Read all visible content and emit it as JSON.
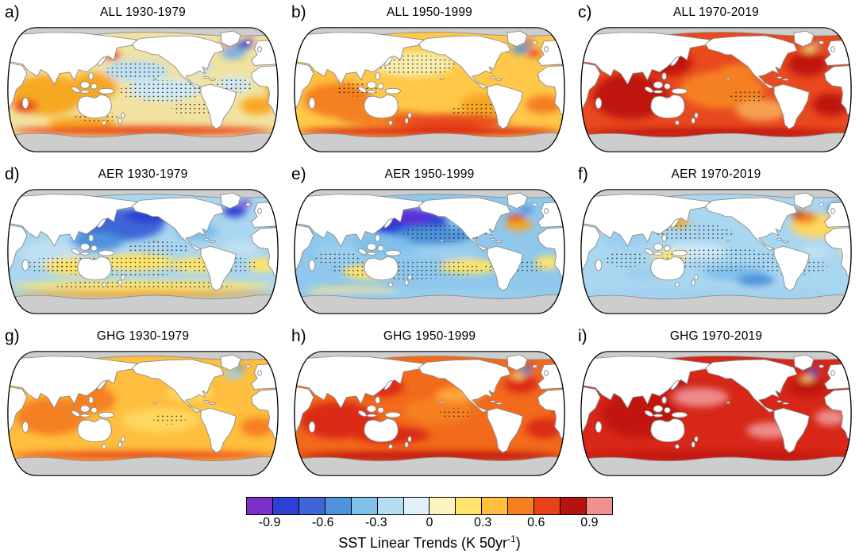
{
  "chart_data": {
    "type": "heatmap",
    "layout": "3x3 grid of global Robinson-projection maps, columns = forcing experiment (ALL, AER, GHG), rows = trend period",
    "variable": "SST Linear Trends",
    "units": "K 50yr-1",
    "stippling_note": "black stippled dots mark regions on several panels",
    "colorbar": {
      "orientation": "horizontal",
      "tick_labels": [
        "-0.9",
        "-0.6",
        "-0.3",
        "0",
        "0.3",
        "0.6",
        "0.9"
      ],
      "segment_step": 0.15,
      "value_min": -1.05,
      "value_max": 1.05,
      "segment_colors": [
        "#7A2FC6",
        "#2F3FD3",
        "#3E66D6",
        "#4E93DC",
        "#7EC0EA",
        "#B5DDF2",
        "#E0F1FA",
        "#FBF3C0",
        "#FFE36B",
        "#FFBE3D",
        "#F58020",
        "#E8421C",
        "#B5140E",
        "#F09090"
      ]
    },
    "panels": [
      {
        "letter": "a)",
        "forcing": "ALL",
        "period": "1930-1979",
        "title": "ALL 1930-1979",
        "pattern": "patchy weak warming; cooling in central North Pacific and subpolar North Atlantic"
      },
      {
        "letter": "b)",
        "forcing": "ALL",
        "period": "1950-1999",
        "title": "ALL 1950-1999",
        "pattern": "moderate warming, strongest in Southern Hemisphere; weak/neutral North Pacific; cool spot subpolar North Atlantic"
      },
      {
        "letter": "c)",
        "forcing": "ALL",
        "period": "1970-2019",
        "title": "ALL 1970-2019",
        "pattern": "strong warming nearly everywhere, strongest in Indian Ocean and Atlantic"
      },
      {
        "letter": "d)",
        "forcing": "AER",
        "period": "1930-1979",
        "title": "AER 1930-1979",
        "pattern": "strong cooling in North Pacific and North Atlantic; weak warm band in southern subtropics"
      },
      {
        "letter": "e)",
        "forcing": "AER",
        "period": "1950-1999",
        "title": "AER 1950-1999",
        "pattern": "widespread cooling, strongest in North Pacific; warm spot in northwest Atlantic"
      },
      {
        "letter": "f)",
        "forcing": "AER",
        "period": "1970-2019",
        "title": "AER 1970-2019",
        "pattern": "weak cooling over much of the Pacific; warming in the North Atlantic"
      },
      {
        "letter": "g)",
        "forcing": "GHG",
        "period": "1930-1979",
        "title": "GHG 1930-1979",
        "pattern": "moderate uniform warming; small cool spot in subpolar North Atlantic"
      },
      {
        "letter": "h)",
        "forcing": "GHG",
        "period": "1950-1999",
        "title": "GHG 1950-1999",
        "pattern": "strong warming everywhere; small cool spot in subpolar North Atlantic"
      },
      {
        "letter": "i)",
        "forcing": "GHG",
        "period": "1970-2019",
        "title": "GHG 1970-2019",
        "pattern": "very strong warming everywhere; small cool spot in subpolar North Atlantic"
      }
    ]
  },
  "colorbar": {
    "colors": [
      "#7A2FC6",
      "#2F3FD3",
      "#3E66D6",
      "#4E93DC",
      "#7EC0EA",
      "#B5DDF2",
      "#E0F1FA",
      "#FBF3C0",
      "#FFE36B",
      "#FFBE3D",
      "#F58020",
      "#E8421C",
      "#B5140E",
      "#F09090"
    ],
    "ticks": [
      "-0.9",
      "-0.6",
      "-0.3",
      "0",
      "0.3",
      "0.6",
      "0.9"
    ],
    "label_prefix": "SST Linear Trends (K 50yr",
    "label_sup": "-1",
    "label_suffix": ")"
  },
  "panels": [
    {
      "letter": "a)",
      "title": "ALL 1930-1979",
      "ocean": "#F2E2A0",
      "blobs": [
        [
          55,
          108,
          48,
          30,
          "#F7A823"
        ],
        [
          26,
          124,
          16,
          10,
          "#E8491F"
        ],
        [
          116,
          96,
          30,
          22,
          "#F7A823"
        ],
        [
          140,
          50,
          10,
          6,
          "#DC2B18"
        ],
        [
          292,
          30,
          8,
          5,
          "#DC2B18"
        ],
        [
          80,
          70,
          25,
          12,
          "#FFD75E"
        ],
        [
          172,
          72,
          42,
          16,
          "#BFE0F2"
        ],
        [
          208,
          100,
          48,
          16,
          "#CFE9F6"
        ],
        [
          252,
          66,
          20,
          10,
          "#BFE0F2"
        ],
        [
          298,
          46,
          16,
          9,
          "#7FB0E0"
        ],
        [
          312,
          34,
          10,
          6,
          "#2F3FD3"
        ],
        [
          320,
          27,
          5,
          4,
          "#7A2FC6"
        ],
        [
          300,
          92,
          22,
          12,
          "#CFE9F6"
        ],
        [
          330,
          124,
          22,
          13,
          "#F7A823"
        ],
        [
          351,
          100,
          9,
          18,
          "#F7A823"
        ],
        [
          100,
          150,
          45,
          10,
          "#F7A823"
        ],
        [
          180,
          161,
          172,
          7,
          "#E8491F"
        ]
      ],
      "stipples": [
        [
          205,
          102,
          55,
          16
        ],
        [
          172,
          72,
          40,
          13
        ],
        [
          298,
          94,
          26,
          11
        ],
        [
          252,
          128,
          34,
          11
        ],
        [
          120,
          140,
          30,
          8
        ]
      ]
    },
    {
      "letter": "b)",
      "title": "ALL 1950-1999",
      "ocean": "#FFC848",
      "blobs": [
        [
          158,
          62,
          55,
          18,
          "#F8EFAE"
        ],
        [
          60,
          115,
          45,
          26,
          "#F58020"
        ],
        [
          120,
          142,
          60,
          12,
          "#F58020"
        ],
        [
          205,
          146,
          80,
          10,
          "#E8491F"
        ],
        [
          180,
          162,
          172,
          7,
          "#DC2B18"
        ],
        [
          252,
          122,
          32,
          16,
          "#F5A623"
        ],
        [
          299,
          40,
          11,
          7,
          "#4E93DC"
        ],
        [
          309,
          30,
          6,
          4,
          "#7A2FC6"
        ],
        [
          317,
          46,
          9,
          6,
          "#E8491F"
        ],
        [
          330,
          122,
          24,
          14,
          "#F58020"
        ],
        [
          351,
          76,
          8,
          14,
          "#E8491F"
        ],
        [
          40,
          80,
          25,
          12,
          "#FFBE3D"
        ]
      ],
      "stipples": [
        [
          162,
          64,
          52,
          15
        ],
        [
          245,
          130,
          38,
          10
        ],
        [
          85,
          100,
          28,
          10
        ]
      ]
    },
    {
      "letter": "c)",
      "title": "ALL 1970-2019",
      "ocean": "#E8491F",
      "blobs": [
        [
          68,
          110,
          50,
          34,
          "#C01810"
        ],
        [
          118,
          60,
          30,
          20,
          "#C01810"
        ],
        [
          188,
          100,
          55,
          28,
          "#F58020"
        ],
        [
          240,
          130,
          34,
          16,
          "#F5A050"
        ],
        [
          300,
          62,
          26,
          18,
          "#C01810"
        ],
        [
          302,
          40,
          9,
          5,
          "#F7E06B"
        ],
        [
          311,
          33,
          5,
          3,
          "#9CCFEE"
        ],
        [
          330,
          122,
          24,
          17,
          "#C01810"
        ],
        [
          180,
          164,
          172,
          7,
          "#C01810"
        ],
        [
          210,
          72,
          25,
          10,
          "#F58020"
        ]
      ],
      "stipples": [
        [
          222,
          110,
          24,
          9
        ]
      ]
    },
    {
      "letter": "d)",
      "title": "AER 1930-1979",
      "ocean": "#A9D6F0",
      "blobs": [
        [
          150,
          60,
          58,
          24,
          "#3E66D6"
        ],
        [
          186,
          46,
          30,
          12,
          "#2F3FD3"
        ],
        [
          214,
          38,
          13,
          7,
          "#7A2FC6"
        ],
        [
          120,
          85,
          34,
          14,
          "#4E93DC"
        ],
        [
          250,
          70,
          28,
          14,
          "#7EC0EA"
        ],
        [
          60,
          104,
          40,
          20,
          "#BFE0F2"
        ],
        [
          90,
          122,
          40,
          13,
          "#FFE36B"
        ],
        [
          172,
          116,
          50,
          13,
          "#FFE36B"
        ],
        [
          252,
          120,
          34,
          11,
          "#FFE36B"
        ],
        [
          300,
          40,
          15,
          9,
          "#2F3FD3"
        ],
        [
          314,
          28,
          7,
          5,
          "#7A2FC6"
        ],
        [
          308,
          95,
          24,
          12,
          "#BFE0F2"
        ],
        [
          336,
          120,
          18,
          11,
          "#FFE36B"
        ],
        [
          351,
          66,
          8,
          12,
          "#4E93DC"
        ],
        [
          180,
          150,
          172,
          7,
          "#FFE36B"
        ],
        [
          180,
          163,
          172,
          5,
          "#F5A623"
        ]
      ],
      "stipples": [
        [
          150,
          122,
          95,
          16
        ],
        [
          282,
          120,
          48,
          13
        ],
        [
          60,
          120,
          38,
          11
        ],
        [
          180,
          150,
          120,
          7
        ],
        [
          200,
          95,
          40,
          10
        ]
      ]
    },
    {
      "letter": "e)",
      "title": "AER 1950-1999",
      "ocean": "#8FC8EC",
      "blobs": [
        [
          148,
          56,
          55,
          20,
          "#2F3FD3"
        ],
        [
          158,
          48,
          28,
          11,
          "#5B2ED8"
        ],
        [
          185,
          76,
          50,
          14,
          "#4E93DC"
        ],
        [
          118,
          90,
          40,
          14,
          "#7EC0EA"
        ],
        [
          294,
          52,
          12,
          7,
          "#DC2B18"
        ],
        [
          297,
          61,
          18,
          8,
          "#F5A623"
        ],
        [
          306,
          38,
          10,
          6,
          "#4E93DC"
        ],
        [
          100,
          130,
          34,
          11,
          "#FFE36B"
        ],
        [
          232,
          122,
          38,
          11,
          "#FFE36B"
        ],
        [
          335,
          116,
          17,
          10,
          "#FFE36B"
        ],
        [
          60,
          104,
          30,
          14,
          "#9CCFEE"
        ],
        [
          205,
          102,
          40,
          11,
          "#9CCFEE"
        ],
        [
          80,
          158,
          60,
          6,
          "#FFE36B"
        ],
        [
          180,
          163,
          172,
          5,
          "#9CCFEE"
        ]
      ],
      "stipples": [
        [
          150,
          126,
          100,
          15
        ],
        [
          292,
          122,
          40,
          11
        ],
        [
          200,
          72,
          55,
          14
        ],
        [
          60,
          110,
          30,
          10
        ]
      ]
    },
    {
      "letter": "f)",
      "title": "AER 1970-2019",
      "ocean": "#A9D6F0",
      "blobs": [
        [
          312,
          62,
          34,
          18,
          "#FFD75E"
        ],
        [
          296,
          50,
          16,
          9,
          "#F58020"
        ],
        [
          288,
          45,
          8,
          5,
          "#C01810"
        ],
        [
          334,
          38,
          8,
          5,
          "#2F3FD3"
        ],
        [
          340,
          31,
          5,
          3,
          "#7A2FC6"
        ],
        [
          152,
          100,
          42,
          12,
          "#CFE9F6"
        ],
        [
          120,
          106,
          24,
          9,
          "#FFE36B"
        ],
        [
          130,
          56,
          14,
          8,
          "#F5A623"
        ],
        [
          60,
          82,
          30,
          14,
          "#9CCFEE"
        ],
        [
          205,
          132,
          40,
          11,
          "#7EC0EA"
        ],
        [
          232,
          142,
          24,
          9,
          "#4E93DC"
        ],
        [
          90,
          132,
          30,
          10,
          "#9CCFEE"
        ],
        [
          310,
          100,
          20,
          10,
          "#BFE0F2"
        ],
        [
          352,
          96,
          8,
          14,
          "#FFE36B"
        ],
        [
          180,
          163,
          172,
          5,
          "#9CCFEE"
        ]
      ],
      "stipples": [
        [
          185,
          112,
          78,
          17
        ],
        [
          282,
          122,
          44,
          13
        ],
        [
          152,
          72,
          50,
          13
        ],
        [
          62,
          112,
          30,
          11
        ]
      ]
    },
    {
      "letter": "g)",
      "title": "GHG 1930-1979",
      "ocean": "#FFBE3D",
      "blobs": [
        [
          60,
          104,
          46,
          28,
          "#F58020"
        ],
        [
          114,
          80,
          30,
          20,
          "#F58020"
        ],
        [
          117,
          55,
          12,
          7,
          "#DC2B18"
        ],
        [
          202,
          110,
          50,
          18,
          "#FFD75E"
        ],
        [
          242,
          70,
          30,
          14,
          "#FFD75E"
        ],
        [
          299,
          42,
          12,
          7,
          "#9CCFEE"
        ],
        [
          307,
          33,
          6,
          4,
          "#4E93DC"
        ],
        [
          330,
          120,
          22,
          14,
          "#F58020"
        ],
        [
          351,
          72,
          8,
          14,
          "#F58020"
        ],
        [
          180,
          162,
          172,
          6,
          "#E8491F"
        ],
        [
          272,
          100,
          24,
          12,
          "#FFC848"
        ]
      ],
      "stipples": [
        [
          215,
          108,
          22,
          8
        ]
      ]
    },
    {
      "letter": "h)",
      "title": "GHG 1950-1999",
      "ocean": "#F26A1B",
      "blobs": [
        [
          60,
          110,
          50,
          28,
          "#DC2B18"
        ],
        [
          130,
          132,
          50,
          13,
          "#DC2B18"
        ],
        [
          120,
          60,
          26,
          15,
          "#DC2B18"
        ],
        [
          192,
          96,
          45,
          20,
          "#F58020"
        ],
        [
          218,
          72,
          30,
          11,
          "#FFA63D"
        ],
        [
          300,
          56,
          22,
          14,
          "#DC2B18"
        ],
        [
          305,
          37,
          9,
          5,
          "#4E93DC"
        ],
        [
          311,
          30,
          5,
          3,
          "#7A2FC6"
        ],
        [
          296,
          45,
          8,
          4,
          "#FFE36B"
        ],
        [
          330,
          122,
          24,
          15,
          "#DC2B18"
        ],
        [
          180,
          163,
          172,
          7,
          "#C01810"
        ],
        [
          351,
          92,
          8,
          16,
          "#DC2B18"
        ]
      ],
      "stipples": [
        [
          215,
          100,
          22,
          8
        ]
      ]
    },
    {
      "letter": "i)",
      "title": "GHG 1970-2019",
      "ocean": "#D62718",
      "blobs": [
        [
          80,
          100,
          50,
          34,
          "#C01810"
        ],
        [
          120,
          56,
          26,
          12,
          "#C01810"
        ],
        [
          160,
          76,
          36,
          14,
          "#EE8A8A"
        ],
        [
          250,
          125,
          30,
          12,
          "#EE8A8A"
        ],
        [
          330,
          106,
          20,
          12,
          "#EE8A8A"
        ],
        [
          300,
          60,
          26,
          15,
          "#C01810"
        ],
        [
          305,
          40,
          8,
          5,
          "#3E66D6"
        ],
        [
          299,
          48,
          8,
          4,
          "#FFE36B"
        ],
        [
          311,
          32,
          4,
          3,
          "#7A2FC6"
        ],
        [
          180,
          163,
          172,
          6,
          "#C01810"
        ]
      ],
      "stipples": []
    }
  ]
}
